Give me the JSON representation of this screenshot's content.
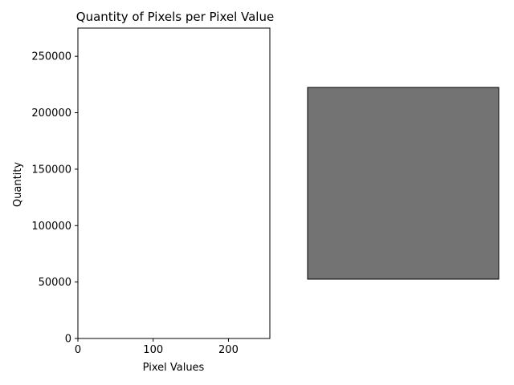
{
  "chart_data": [
    {
      "type": "bar",
      "title": "Quantity of Pixels per Pixel Value",
      "xlabel": "Pixel Values",
      "ylabel": "Quantity",
      "xlim": [
        0,
        255
      ],
      "ylim": [
        0,
        275000
      ],
      "x_ticks": [
        0,
        100,
        200
      ],
      "y_ticks": [
        0,
        50000,
        100000,
        150000,
        200000,
        250000
      ],
      "x": [],
      "values": [],
      "grid": false,
      "colors": {
        "axes": "#000000",
        "background": "#ffffff"
      }
    },
    {
      "type": "image",
      "fill_color": "#737373",
      "edge_color": "#000000"
    }
  ]
}
